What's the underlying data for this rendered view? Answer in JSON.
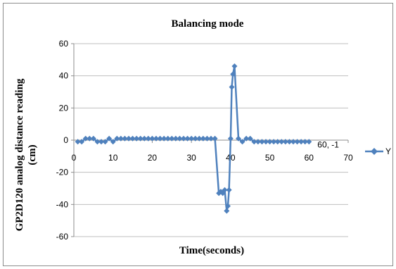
{
  "chart_data": {
    "type": "line",
    "title": "Balancing mode",
    "xlabel": "Time(seconds)",
    "ylabel_line1": "GP2D120 analog distance reading",
    "ylabel_line2": "(cm)",
    "xlim": [
      0,
      70
    ],
    "ylim": [
      -60,
      60
    ],
    "x_ticks": [
      0,
      10,
      20,
      30,
      40,
      50,
      60,
      70
    ],
    "y_ticks": [
      -60,
      -40,
      -20,
      0,
      20,
      40,
      60
    ],
    "x_tick_labels": [
      "0",
      "10",
      "20",
      "30",
      "40",
      "50",
      "60",
      "70"
    ],
    "y_tick_labels": [
      "-60",
      "-40",
      "-20",
      "0",
      "20",
      "40",
      "60"
    ],
    "grid": "horizontal",
    "legend_position": "right",
    "series_color": "#4f81bd",
    "series": [
      {
        "name": "Y",
        "x": [
          1,
          2,
          3,
          4,
          5,
          6,
          7,
          8,
          9,
          10,
          11,
          12,
          13,
          14,
          15,
          16,
          17,
          18,
          19,
          20,
          21,
          22,
          23,
          24,
          25,
          26,
          27,
          28,
          29,
          30,
          31,
          32,
          33,
          34,
          35,
          36,
          37,
          37.5,
          38,
          38.5,
          39,
          39.3,
          39.6,
          40,
          40.3,
          40.6,
          41,
          42,
          43,
          44,
          45,
          46,
          47,
          48,
          49,
          50,
          51,
          52,
          53,
          54,
          55,
          56,
          57,
          58,
          59,
          60
        ],
        "y": [
          -1,
          -1,
          1,
          1,
          1,
          -1,
          -1,
          -1,
          1,
          -1,
          1,
          1,
          1,
          1,
          1,
          1,
          1,
          1,
          1,
          1,
          1,
          1,
          1,
          1,
          1,
          1,
          1,
          1,
          1,
          1,
          1,
          1,
          1,
          1,
          1,
          1,
          -33,
          -32,
          -33,
          -31,
          -44,
          -41,
          -31,
          1,
          33,
          41,
          46,
          1,
          -1,
          1,
          1,
          -1,
          -1,
          -1,
          -1,
          -1,
          -1,
          -1,
          -1,
          -1,
          -1,
          -1,
          -1,
          -1,
          -1,
          -1
        ]
      }
    ],
    "annotation": {
      "text": "60, -1",
      "x": 60,
      "y": -1
    }
  }
}
